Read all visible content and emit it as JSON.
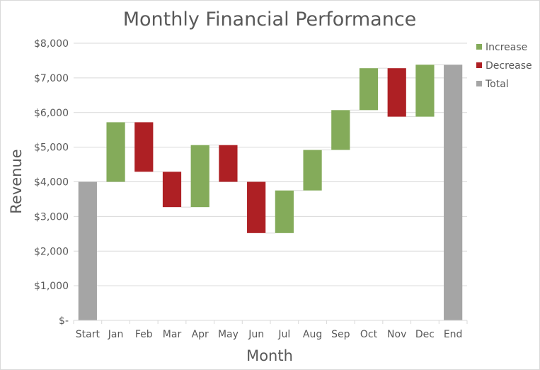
{
  "chart_data": {
    "type": "bar",
    "subtype": "waterfall",
    "title": "Monthly Financial Performance",
    "xlabel": "Month",
    "ylabel": "Revenue",
    "ylim": [
      0,
      8000
    ],
    "y_ticks": [
      0,
      1000,
      2000,
      3000,
      4000,
      5000,
      6000,
      7000,
      8000
    ],
    "y_tick_labels": [
      "$-",
      "$1,000",
      "$2,000",
      "$3,000",
      "$4,000",
      "$5,000",
      "$6,000",
      "$7,000",
      "$8,000"
    ],
    "grid": true,
    "legend_position": "right",
    "legend": [
      {
        "key": "increase",
        "label": "Increase",
        "color": "#84ab5a"
      },
      {
        "key": "decrease",
        "label": "Decrease",
        "color": "#ae2024"
      },
      {
        "key": "total",
        "label": "Total",
        "color": "#a5a5a5"
      }
    ],
    "categories": [
      "Start",
      "Jan",
      "Feb",
      "Mar",
      "Apr",
      "May",
      "Jun",
      "Jul",
      "Aug",
      "Sep",
      "Oct",
      "Nov",
      "Dec",
      "End"
    ],
    "bars": [
      {
        "category": "Start",
        "kind": "total",
        "from": 0,
        "to": 4000
      },
      {
        "category": "Jan",
        "kind": "increase",
        "from": 4000,
        "to": 5720
      },
      {
        "category": "Feb",
        "kind": "decrease",
        "from": 5720,
        "to": 4290
      },
      {
        "category": "Mar",
        "kind": "decrease",
        "from": 4290,
        "to": 3270
      },
      {
        "category": "Apr",
        "kind": "increase",
        "from": 3270,
        "to": 5060
      },
      {
        "category": "May",
        "kind": "decrease",
        "from": 5060,
        "to": 4000
      },
      {
        "category": "Jun",
        "kind": "decrease",
        "from": 4000,
        "to": 2520
      },
      {
        "category": "Jul",
        "kind": "increase",
        "from": 2520,
        "to": 3750
      },
      {
        "category": "Aug",
        "kind": "increase",
        "from": 3750,
        "to": 4920
      },
      {
        "category": "Sep",
        "kind": "increase",
        "from": 4920,
        "to": 6070
      },
      {
        "category": "Oct",
        "kind": "increase",
        "from": 6070,
        "to": 7280
      },
      {
        "category": "Nov",
        "kind": "decrease",
        "from": 7280,
        "to": 5880
      },
      {
        "category": "Dec",
        "kind": "increase",
        "from": 5880,
        "to": 7380
      },
      {
        "category": "End",
        "kind": "total",
        "from": 0,
        "to": 7380
      }
    ]
  }
}
